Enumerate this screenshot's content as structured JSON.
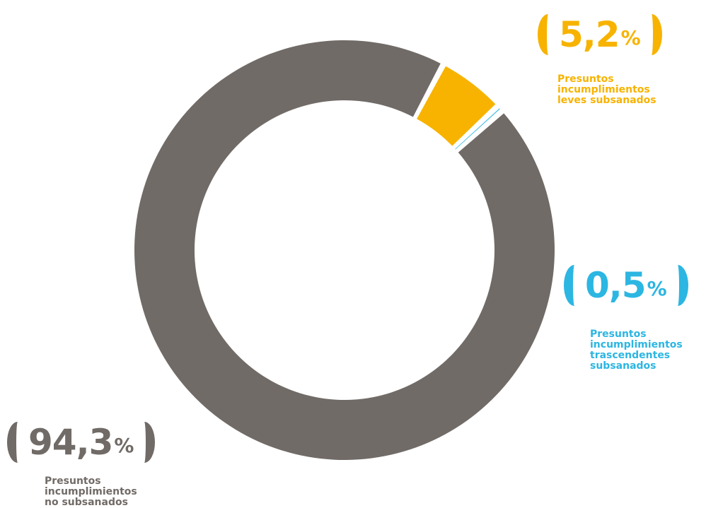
{
  "chart_data": {
    "type": "pie",
    "donut": true,
    "start_angle_deg": 62,
    "slices": [
      {
        "label_lines": [
          "Presuntos",
          "incumplimientos",
          "leves subsanados"
        ],
        "value_text": "5,2",
        "value": 5.2,
        "color": "#f7b300"
      },
      {
        "label_lines": [
          "Presuntos",
          "incumplimientos",
          "trascendentes",
          "subsanados"
        ],
        "value_text": "0,5",
        "value": 0.5,
        "color": "#2cb6e2"
      },
      {
        "label_lines": [
          "Presuntos",
          "incumplimientos",
          "no subsanados"
        ],
        "value_text": "94,3",
        "value": 94.3,
        "color": "#716b67"
      }
    ],
    "percent_sign": "%",
    "legend": "none"
  }
}
